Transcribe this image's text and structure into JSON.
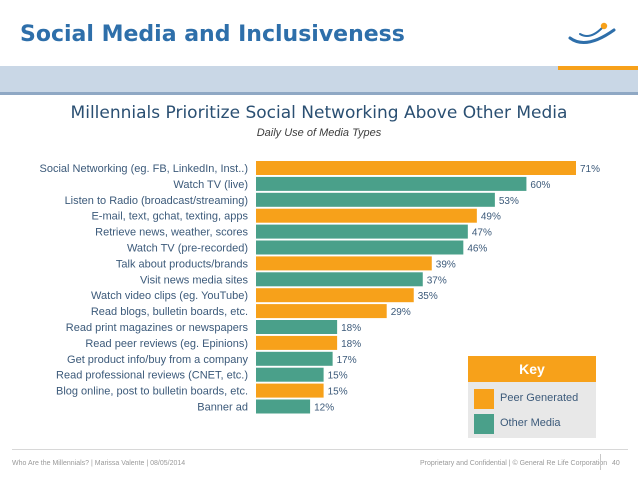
{
  "slide": {
    "title": "Social Media and Inclusiveness"
  },
  "colors": {
    "peer_generated": "#f7a11a",
    "other_media": "#4aa08a",
    "title": "#2e6faa",
    "band": "#c9d7e6",
    "key_title_bg": "#f7a11a"
  },
  "chart_data": {
    "type": "bar",
    "orientation": "horizontal",
    "title": "Millennials Prioritize Social Networking Above Other Media",
    "subtitle": "Daily Use of Media Types",
    "value_suffix": "%",
    "categories": [
      "Social Networking (eg. FB, LinkedIn, Inst..)",
      "Watch TV (live)",
      "Listen to Radio (broadcast/streaming)",
      "E-mail, text, gchat, texting, apps",
      "Retrieve news, weather, scores",
      "Watch TV (pre-recorded)",
      "Talk about products/brands",
      "Visit news media sites",
      "Watch video clips (eg. YouTube)",
      "Read blogs, bulletin boards, etc.",
      "Read print magazines or newspapers",
      "Read peer reviews (eg. Epinions)",
      "Get product info/buy from a company",
      "Read professional reviews (CNET, etc.)",
      "Blog online, post to bulletin boards, etc.",
      "Banner ad"
    ],
    "values": [
      71,
      60,
      53,
      49,
      47,
      46,
      39,
      37,
      35,
      29,
      18,
      18,
      17,
      15,
      15,
      12
    ],
    "groups": [
      "peer",
      "other",
      "other",
      "peer",
      "other",
      "other",
      "peer",
      "other",
      "peer",
      "peer",
      "other",
      "peer",
      "other",
      "other",
      "peer",
      "other"
    ],
    "legend": {
      "title": "Key",
      "position": "bottom-right",
      "items": [
        {
          "key": "peer",
          "label": "Peer Generated"
        },
        {
          "key": "other",
          "label": "Other Media"
        }
      ]
    },
    "xlim": [
      0,
      71
    ],
    "grid": false
  },
  "footer": {
    "left": "Who Are the Millennials?   |   Marissa Valente   |   08/05/2014",
    "right": "Proprietary and Confidential   |   © General Re Life Corporation",
    "page": "40"
  }
}
